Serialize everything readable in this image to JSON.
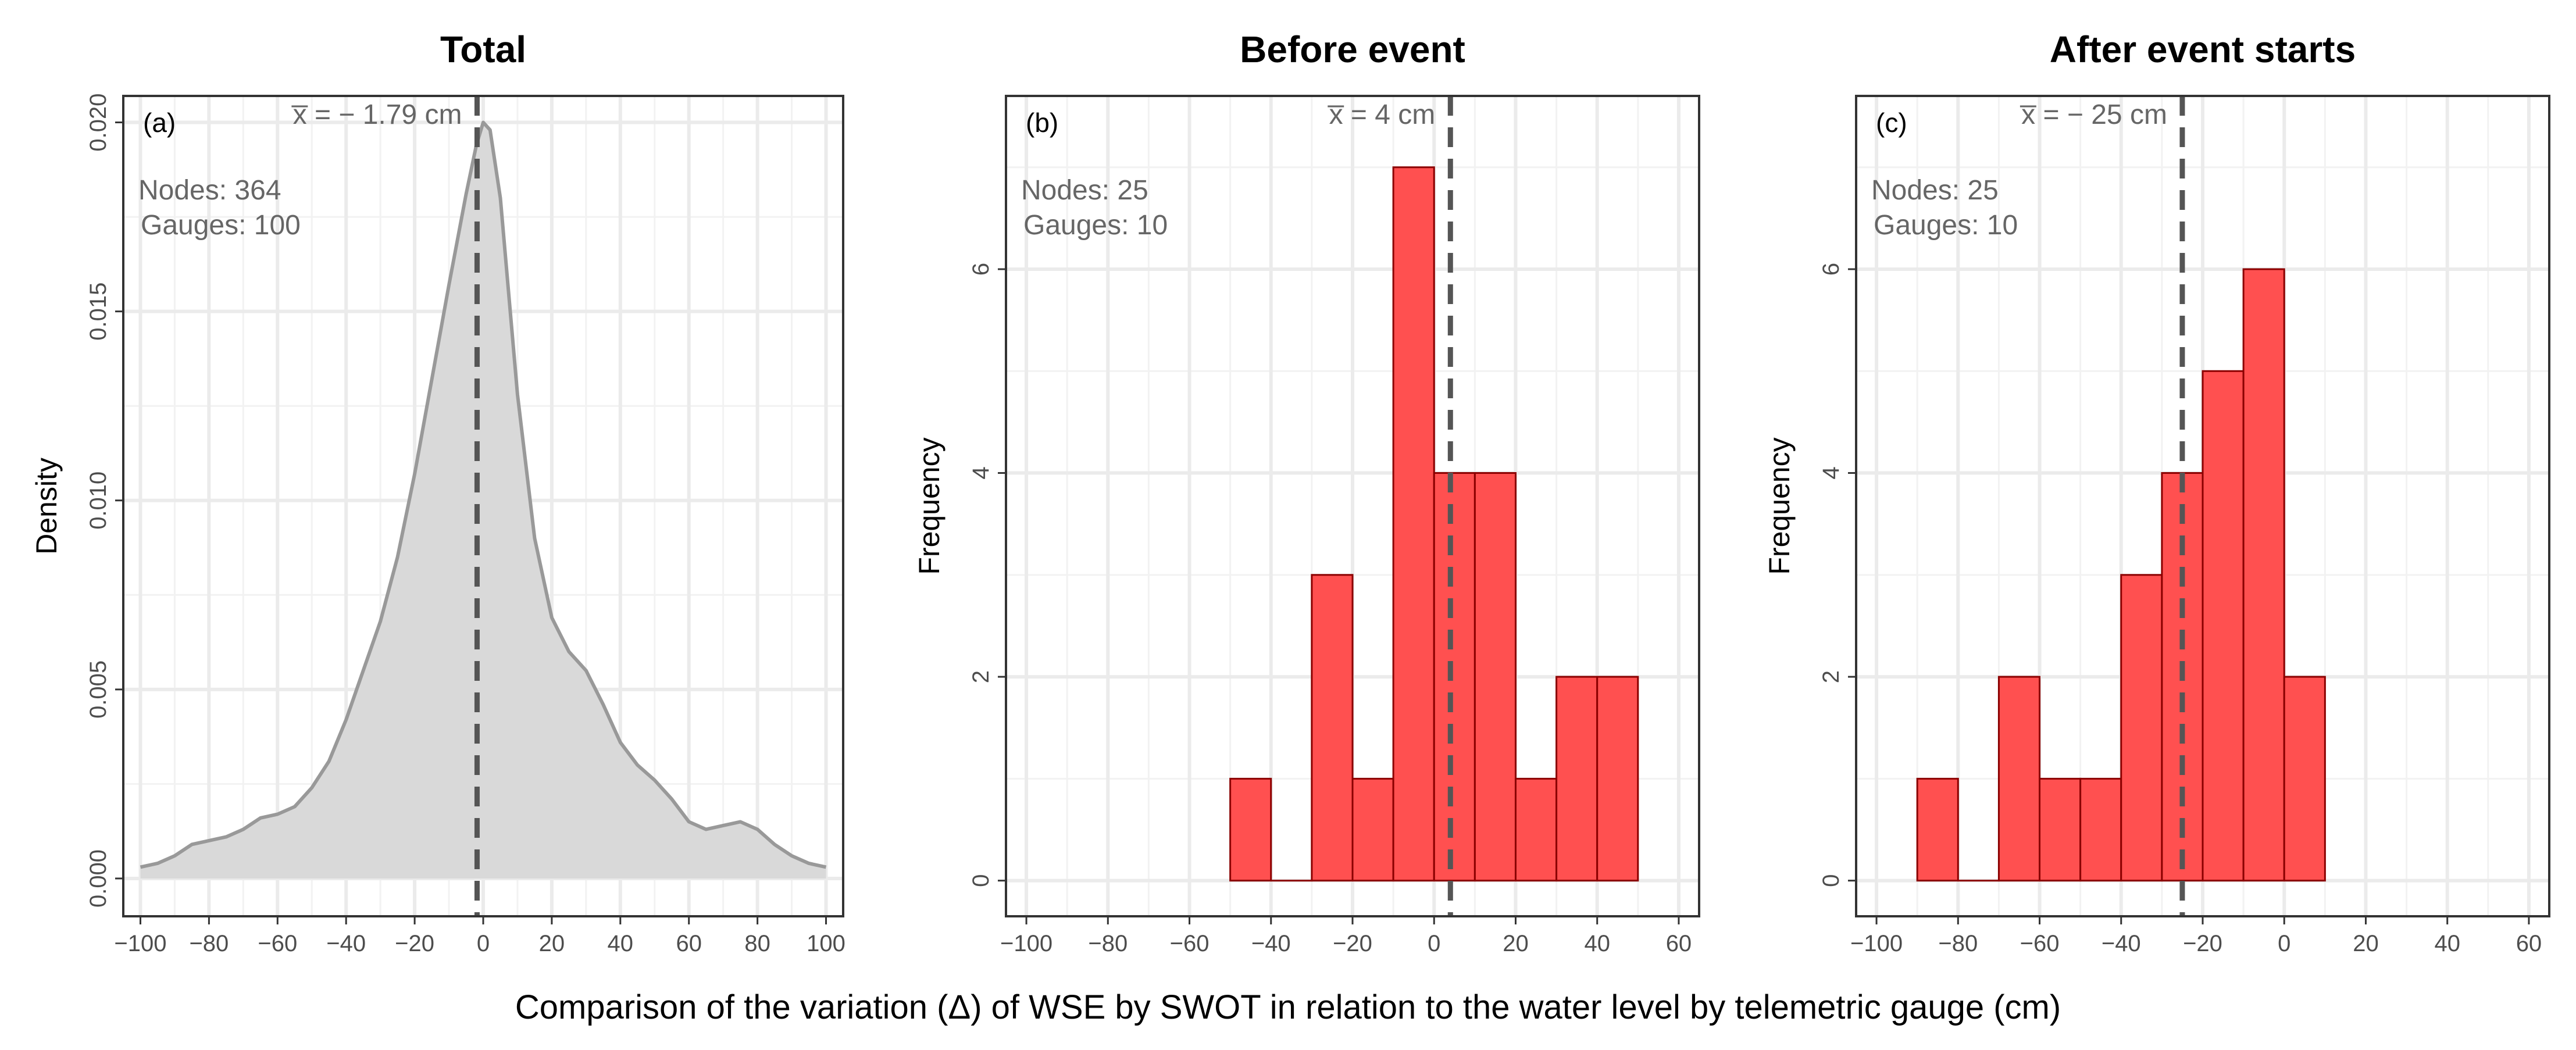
{
  "figure": {
    "xlabel": "Comparison of the variation (Δ) of WSE by SWOT in relation to the water level by telemetric gauge (cm)"
  },
  "chart_data": [
    {
      "type": "area",
      "panel_label": "(a)",
      "title": "Total",
      "ylabel": "Density",
      "xlim": [
        -105,
        105
      ],
      "ylim": [
        -0.001,
        0.0207
      ],
      "xticks": [
        -100,
        -80,
        -60,
        -40,
        -20,
        0,
        20,
        40,
        60,
        80,
        100
      ],
      "yticks": [
        0.0,
        0.005,
        0.01,
        0.015,
        0.02
      ],
      "ytick_labels": [
        "0.000",
        "0.005",
        "0.010",
        "0.015",
        "0.020"
      ],
      "mean": -1.79,
      "mean_label": "x̅ = − 1.79 cm",
      "nodes_label": "Nodes: 364",
      "gauges_label": "Gauges: 100",
      "fill_color": "#d9d9d9",
      "line_color": "#999999",
      "x": [
        -100,
        -95,
        -90,
        -85,
        -80,
        -75,
        -70,
        -65,
        -60,
        -55,
        -50,
        -45,
        -40,
        -35,
        -30,
        -25,
        -20,
        -15,
        -10,
        -5,
        -2,
        0,
        2,
        5,
        10,
        15,
        20,
        25,
        30,
        35,
        40,
        45,
        50,
        55,
        60,
        65,
        70,
        75,
        80,
        85,
        90,
        95,
        100
      ],
      "y": [
        0.0003,
        0.0004,
        0.0006,
        0.0009,
        0.001,
        0.0011,
        0.0013,
        0.0016,
        0.0017,
        0.0019,
        0.0024,
        0.0031,
        0.0042,
        0.0055,
        0.0068,
        0.0085,
        0.0107,
        0.0132,
        0.0157,
        0.0181,
        0.0194,
        0.02,
        0.0198,
        0.018,
        0.0128,
        0.009,
        0.0069,
        0.006,
        0.0055,
        0.0046,
        0.0036,
        0.003,
        0.0026,
        0.0021,
        0.0015,
        0.0013,
        0.0014,
        0.0015,
        0.0013,
        0.0009,
        0.0006,
        0.0004,
        0.0003
      ]
    },
    {
      "type": "bar",
      "panel_label": "(b)",
      "title": "Before event",
      "ylabel": "Frequency",
      "xlim": [
        -105,
        65
      ],
      "ylim": [
        -0.35,
        7.7
      ],
      "xticks": [
        -100,
        -80,
        -60,
        -40,
        -20,
        0,
        20,
        40,
        60
      ],
      "yticks": [
        0,
        2,
        4,
        6
      ],
      "mean": 4,
      "mean_label": "x̅ = 4 cm",
      "nodes_label": "Nodes: 25",
      "gauges_label": "Gauges: 10",
      "fill_color": "#ff4d4d",
      "edge_color": "#8b0000",
      "bin_edges": [
        -50,
        -40,
        -30,
        -20,
        -10,
        0,
        10,
        20,
        30,
        40,
        50
      ],
      "values": [
        1,
        0,
        3,
        1,
        7,
        4,
        4,
        1,
        2,
        2
      ]
    },
    {
      "type": "bar",
      "panel_label": "(c)",
      "title": "After event starts",
      "ylabel": "Frequency",
      "xlim": [
        -105,
        65
      ],
      "ylim": [
        -0.35,
        7.7
      ],
      "xticks": [
        -100,
        -80,
        -60,
        -40,
        -20,
        0,
        20,
        40,
        60
      ],
      "yticks": [
        0,
        2,
        4,
        6
      ],
      "mean": -25,
      "mean_label": "x̅ = − 25 cm",
      "nodes_label": "Nodes: 25",
      "gauges_label": "Gauges: 10",
      "fill_color": "#ff4d4d",
      "edge_color": "#8b0000",
      "bin_edges": [
        -90,
        -80,
        -70,
        -60,
        -50,
        -40,
        -30,
        -20,
        -10,
        0,
        10
      ],
      "values": [
        1,
        0,
        2,
        1,
        1,
        3,
        4,
        5,
        6,
        2
      ]
    }
  ]
}
